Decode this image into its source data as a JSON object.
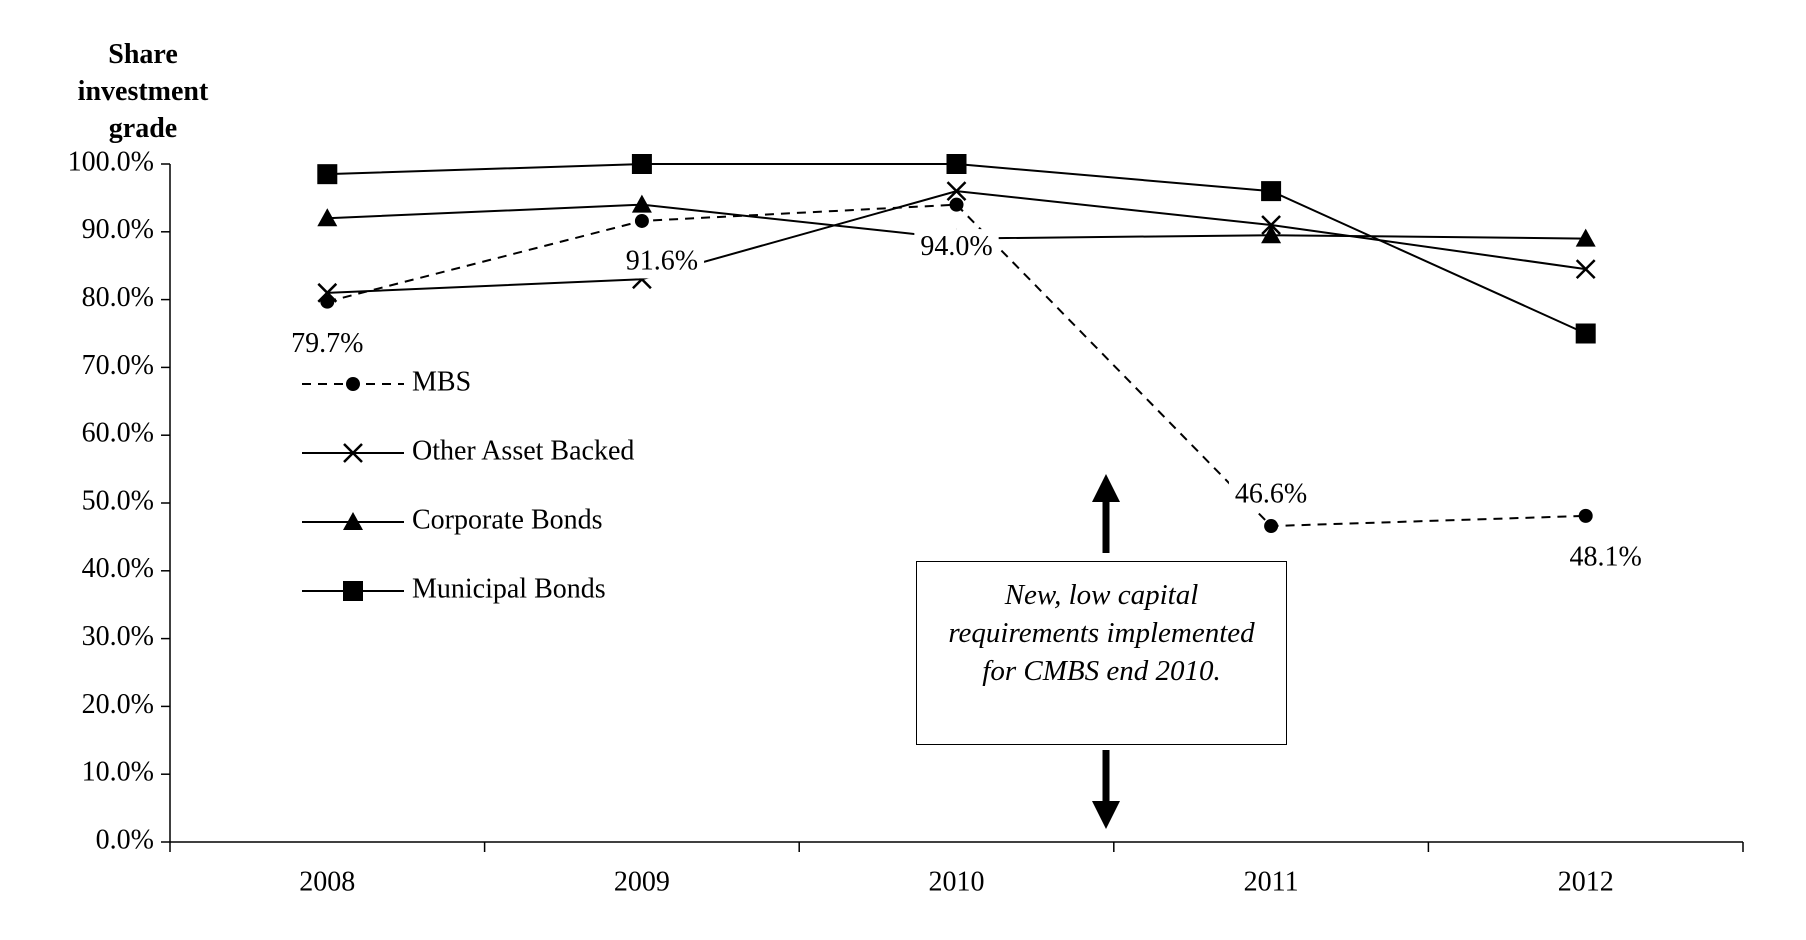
{
  "chart_data": {
    "type": "line",
    "y_label": "Share investment grade",
    "categories": [
      "2008",
      "2009",
      "2010",
      "2011",
      "2012"
    ],
    "series": [
      {
        "name": "MBS",
        "color": "#000000",
        "line_style": "dashed",
        "marker": "circle",
        "values": [
          79.7,
          91.6,
          94.0,
          46.6,
          48.1
        ],
        "value_labels": [
          "79.7%",
          "91.6%",
          "94.0%",
          "46.6%",
          "48.1%"
        ]
      },
      {
        "name": "Other Asset Backed",
        "color": "#000000",
        "line_style": "solid",
        "marker": "cross",
        "values": [
          81,
          83,
          96,
          91,
          84.5
        ]
      },
      {
        "name": "Corporate Bonds",
        "color": "#000000",
        "line_style": "solid",
        "marker": "triangle",
        "values": [
          92,
          94,
          89,
          89.5,
          89
        ]
      },
      {
        "name": "Municipal Bonds",
        "color": "#000000",
        "line_style": "solid",
        "marker": "square",
        "values": [
          98.5,
          100,
          100,
          96,
          75
        ]
      }
    ],
    "ylim": [
      0,
      100
    ],
    "yticks": [
      {
        "value": 0,
        "label": "0.0%"
      },
      {
        "value": 10,
        "label": "10.0%"
      },
      {
        "value": 20,
        "label": "20.0%"
      },
      {
        "value": 30,
        "label": "30.0%"
      },
      {
        "value": 40,
        "label": "40.0%"
      },
      {
        "value": 50,
        "label": "50.0%"
      },
      {
        "value": 60,
        "label": "60.0%"
      },
      {
        "value": 70,
        "label": "70.0%"
      },
      {
        "value": 80,
        "label": "80.0%"
      },
      {
        "value": 90,
        "label": "90.0%"
      },
      {
        "value": 100,
        "label": "100.0%"
      }
    ],
    "grid": false,
    "annotation": "New, low capital requirements implemented for CMBS end 2010."
  }
}
